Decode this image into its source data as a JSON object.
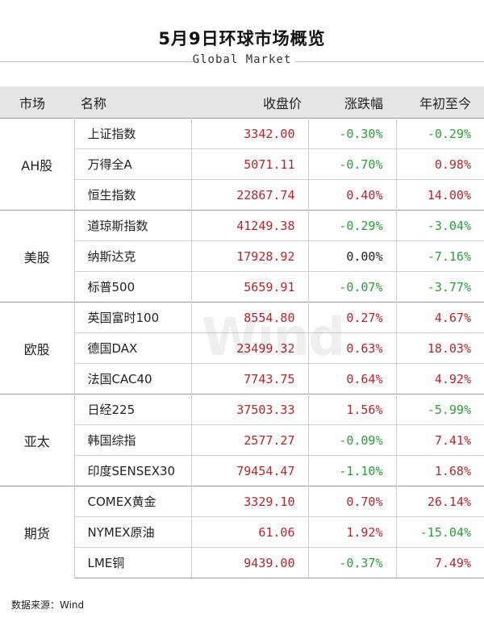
{
  "header": {
    "title": "5月9日环球市场概览",
    "subtitle": "Global Market"
  },
  "columns": {
    "market": "市场",
    "name": "名称",
    "close": "收盘价",
    "change": "涨跌幅",
    "ytd": "年初至今"
  },
  "groups": [
    {
      "market": "AH股",
      "rows": [
        {
          "name": "上证指数",
          "close": "3342.00",
          "change": "-0.30%",
          "ytd": "-0.29%"
        },
        {
          "name": "万得全A",
          "close": "5071.11",
          "change": "-0.70%",
          "ytd": "0.98%"
        },
        {
          "name": "恒生指数",
          "close": "22867.74",
          "change": "0.40%",
          "ytd": "14.00%"
        }
      ]
    },
    {
      "market": "美股",
      "rows": [
        {
          "name": "道琼斯指数",
          "close": "41249.38",
          "change": "-0.29%",
          "ytd": "-3.04%"
        },
        {
          "name": "纳斯达克",
          "close": "17928.92",
          "change": "0.00%",
          "ytd": "-7.16%"
        },
        {
          "name": "标普500",
          "close": "5659.91",
          "change": "-0.07%",
          "ytd": "-3.77%"
        }
      ]
    },
    {
      "market": "欧股",
      "rows": [
        {
          "name": "英国富时100",
          "close": "8554.80",
          "change": "0.27%",
          "ytd": "4.67%"
        },
        {
          "name": "德国DAX",
          "close": "23499.32",
          "change": "0.63%",
          "ytd": "18.03%"
        },
        {
          "name": "法国CAC40",
          "close": "7743.75",
          "change": "0.64%",
          "ytd": "4.92%"
        }
      ]
    },
    {
      "market": "亚太",
      "rows": [
        {
          "name": "日经225",
          "close": "37503.33",
          "change": "1.56%",
          "ytd": "-5.99%"
        },
        {
          "name": "韩国综指",
          "close": "2577.27",
          "change": "-0.09%",
          "ytd": "7.41%"
        },
        {
          "name": "印度SENSEX30",
          "close": "79454.47",
          "change": "-1.10%",
          "ytd": "1.68%"
        }
      ]
    },
    {
      "market": "期货",
      "rows": [
        {
          "name": "COMEX黄金",
          "close": "3329.10",
          "change": "0.70%",
          "ytd": "26.14%"
        },
        {
          "name": "NYMEX原油",
          "close": "61.06",
          "change": "1.92%",
          "ytd": "-15.04%"
        },
        {
          "name": "LME铜",
          "close": "9439.00",
          "change": "-0.37%",
          "ytd": "7.49%"
        }
      ]
    }
  ],
  "colors": {
    "up": "#b3262d",
    "down": "#2e9a3e",
    "flat": "#222222",
    "header_bg": "#e5e5e5"
  },
  "watermark": "Wind",
  "footer": {
    "source": "数据来源：Wind"
  }
}
